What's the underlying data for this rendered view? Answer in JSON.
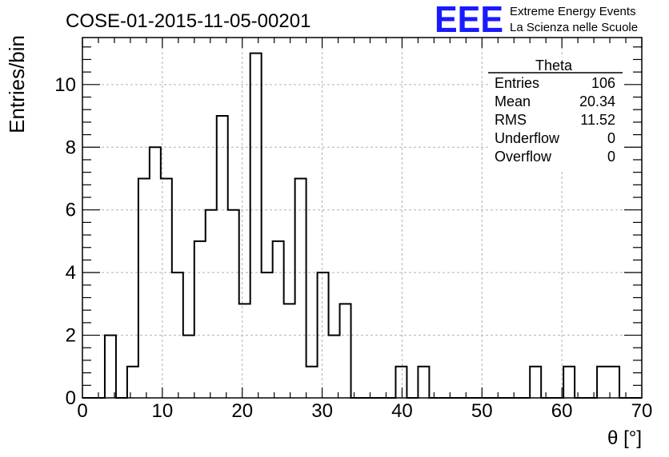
{
  "header": {
    "run_title": "COSE-01-2015-11-05-00201",
    "logo_text": "EEE",
    "logo_line1": "Extreme Energy Events",
    "logo_line2": "La Scienza nelle Scuole"
  },
  "colors": {
    "logo_blue": "#1a1aff",
    "logo_text_blue": "#1a1ae6",
    "histogram_line": "#000000",
    "grid": "#b0b0b0"
  },
  "stats_box": {
    "title": "Theta",
    "rows": [
      {
        "label": "Entries",
        "value": "106"
      },
      {
        "label": "Mean",
        "value": "20.34"
      },
      {
        "label": "RMS",
        "value": "11.52"
      },
      {
        "label": "Underflow",
        "value": "0"
      },
      {
        "label": "Overflow",
        "value": "0"
      }
    ]
  },
  "chart_data": {
    "type": "histogram",
    "title": "COSE-01-2015-11-05-00201",
    "xlabel": "θ [°]",
    "ylabel": "Entries/bin",
    "xlim": [
      0,
      70
    ],
    "ylim": [
      0,
      11.5
    ],
    "xticks": [
      0,
      10,
      20,
      30,
      40,
      50,
      60,
      70
    ],
    "yticks": [
      0,
      2,
      4,
      6,
      8,
      10
    ],
    "grid": true,
    "bin_width": 1.4,
    "bin_edges_start": 0,
    "values": [
      0,
      0,
      2,
      0,
      1,
      7,
      8,
      7,
      4,
      2,
      5,
      6,
      9,
      6,
      3,
      11,
      4,
      5,
      3,
      7,
      1,
      4,
      2,
      3,
      0,
      0,
      0,
      0,
      1,
      0,
      1,
      0,
      0,
      0,
      0,
      0,
      0,
      0,
      0,
      0,
      1,
      0,
      0,
      1,
      0,
      0,
      1,
      1,
      0,
      0
    ]
  }
}
